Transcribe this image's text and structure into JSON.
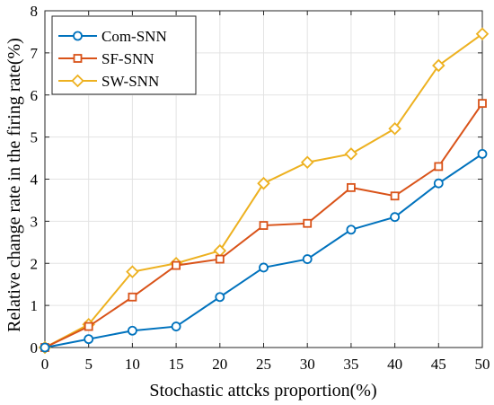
{
  "chart_data": {
    "type": "line",
    "title": "",
    "xlabel": "Stochastic attcks proportion(%)",
    "ylabel": "Relative change rate in the firing rate(%)",
    "x": [
      0,
      5,
      10,
      15,
      20,
      25,
      30,
      35,
      40,
      45,
      50
    ],
    "xlim": [
      0,
      50
    ],
    "ylim": [
      0,
      8
    ],
    "xticks": [
      "0",
      "5",
      "10",
      "15",
      "20",
      "25",
      "30",
      "35",
      "40",
      "45",
      "50"
    ],
    "yticks": [
      "0",
      "1",
      "2",
      "3",
      "4",
      "5",
      "6",
      "7",
      "8"
    ],
    "grid": true,
    "legend_position": "top-left",
    "series": [
      {
        "name": "Com-SNN",
        "color": "#0072BD",
        "marker": "circle",
        "values": [
          0,
          0.2,
          0.4,
          0.5,
          1.2,
          1.9,
          2.1,
          2.8,
          3.1,
          3.9,
          4.6
        ]
      },
      {
        "name": "SF-SNN",
        "color": "#D95319",
        "marker": "square",
        "values": [
          0,
          0.5,
          1.2,
          1.95,
          2.1,
          2.9,
          2.95,
          3.8,
          3.6,
          4.3,
          5.8
        ]
      },
      {
        "name": "SW-SNN",
        "color": "#EDB120",
        "marker": "diamond",
        "values": [
          0,
          0.55,
          1.8,
          2.0,
          2.3,
          3.9,
          4.4,
          4.6,
          5.2,
          6.7,
          7.45
        ]
      }
    ]
  }
}
